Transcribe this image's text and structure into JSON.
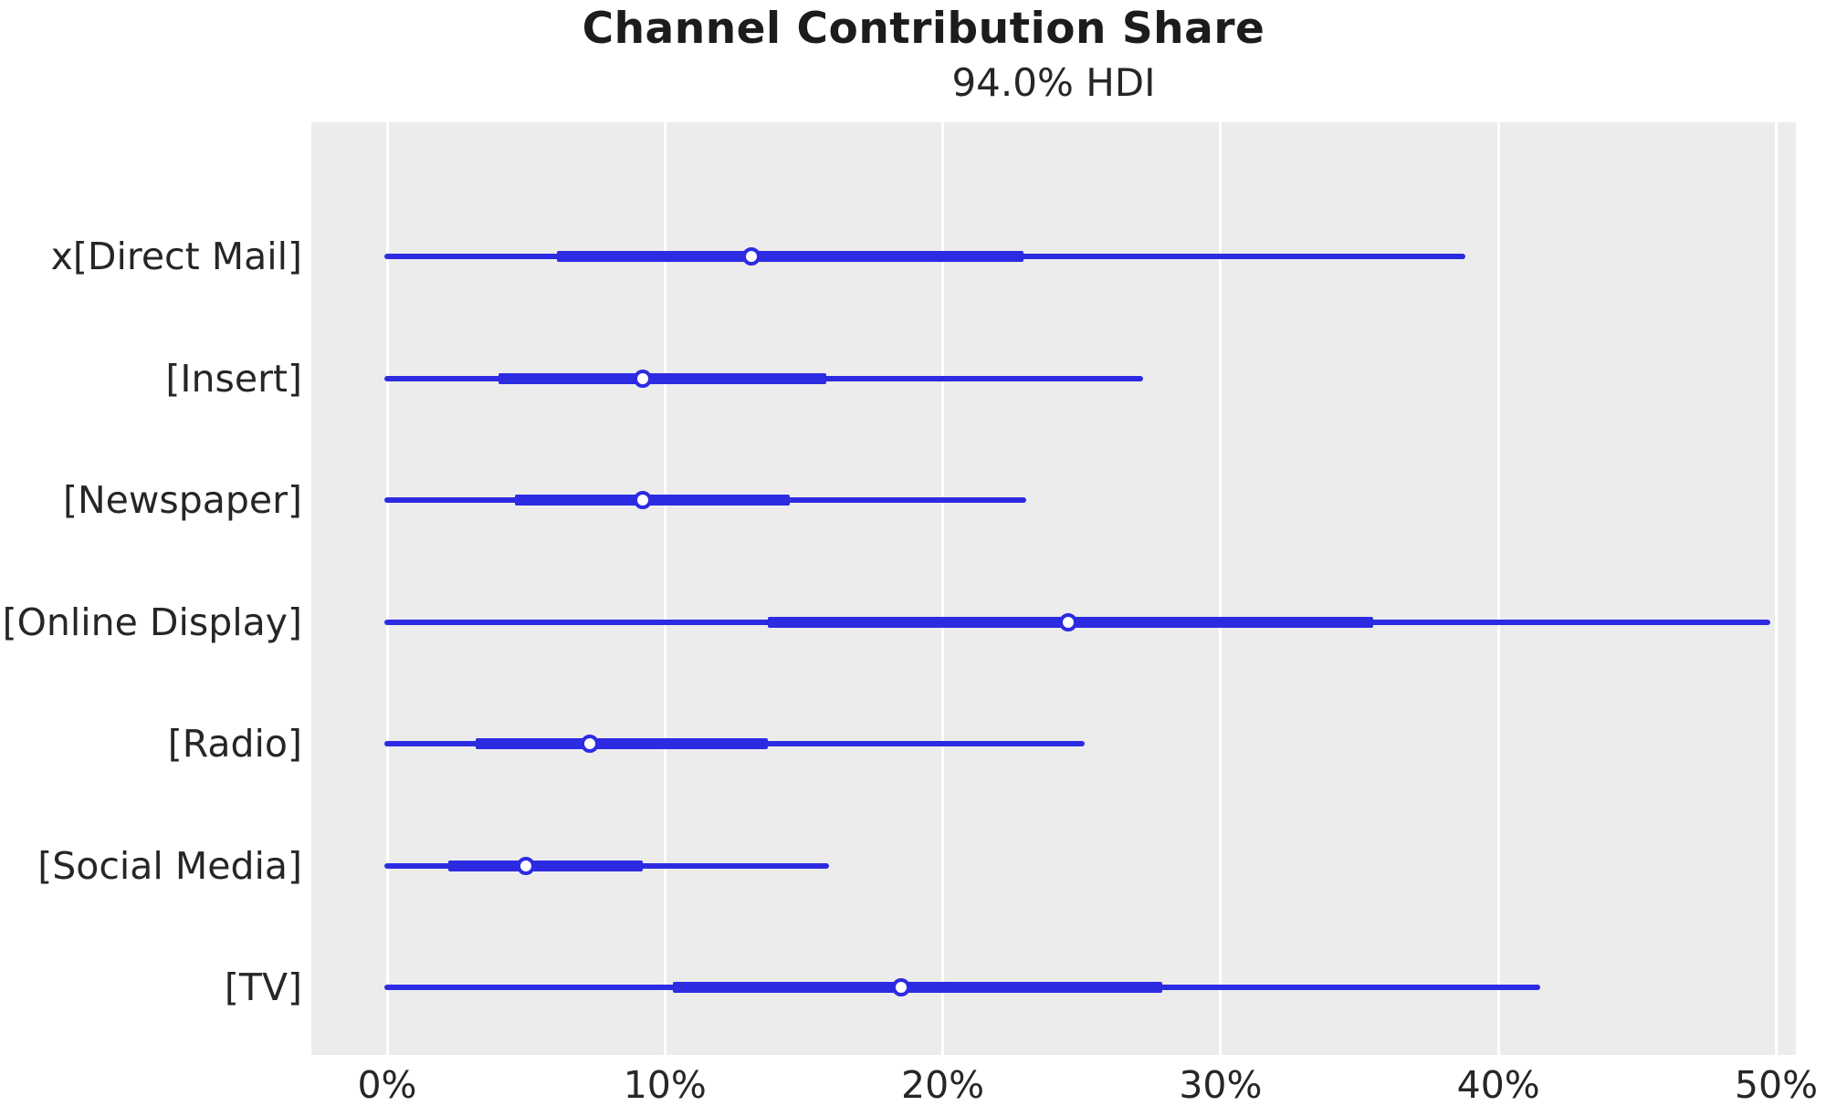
{
  "title": "Channel Contribution Share",
  "subtitle": "94.0% HDI",
  "colors": {
    "interval_blue": "#2d2be2",
    "plot_background": "#ececec",
    "gridline_white": "#ffffff",
    "text_dark": "#262626",
    "title_dark": "#1c1c1c",
    "marker_face": "#ffffff"
  },
  "chart_data": {
    "type": "forest",
    "title": "Channel Contribution Share",
    "subtitle": "94.0% HDI",
    "hdi_probability": "94.0%",
    "orientation": "horizontal",
    "unit": "percent",
    "xlabel": "",
    "ylabel": "",
    "xlim": [
      -2.7,
      50.7
    ],
    "grid": "vertical white gridlines on gray panel",
    "legend": "none",
    "x_ticks": [
      {
        "value": 0,
        "label": "0%"
      },
      {
        "value": 10,
        "label": "10%"
      },
      {
        "value": 20,
        "label": "20%"
      },
      {
        "value": 30,
        "label": "30%"
      },
      {
        "value": 40,
        "label": "40%"
      },
      {
        "value": 50,
        "label": "50%"
      }
    ],
    "categories": [
      "x[Direct Mail]",
      "[Insert]",
      "[Newspaper]",
      "[Online Display]",
      "[Radio]",
      "[Social Media]",
      "[TV]"
    ],
    "rows": [
      {
        "label": "x[Direct Mail]",
        "hdi_lower": 0.0,
        "q25": 6.1,
        "median": 13.1,
        "q75": 22.9,
        "hdi_upper": 38.7
      },
      {
        "label": "[Insert]",
        "hdi_lower": 0.0,
        "q25": 4.0,
        "median": 9.2,
        "q75": 15.8,
        "hdi_upper": 27.1
      },
      {
        "label": "[Newspaper]",
        "hdi_lower": 0.0,
        "q25": 4.6,
        "median": 9.2,
        "q75": 14.5,
        "hdi_upper": 22.9
      },
      {
        "label": "[Online Display]",
        "hdi_lower": 0.0,
        "q25": 13.7,
        "median": 24.5,
        "q75": 35.5,
        "hdi_upper": 49.7
      },
      {
        "label": "[Radio]",
        "hdi_lower": 0.0,
        "q25": 3.2,
        "median": 7.3,
        "q75": 13.7,
        "hdi_upper": 25.0
      },
      {
        "label": "[Social Media]",
        "hdi_lower": 0.0,
        "q25": 2.2,
        "median": 5.0,
        "q75": 9.2,
        "hdi_upper": 15.8
      },
      {
        "label": "[TV]",
        "hdi_lower": 0.0,
        "q25": 10.3,
        "median": 18.5,
        "q75": 27.9,
        "hdi_upper": 41.4
      }
    ]
  }
}
